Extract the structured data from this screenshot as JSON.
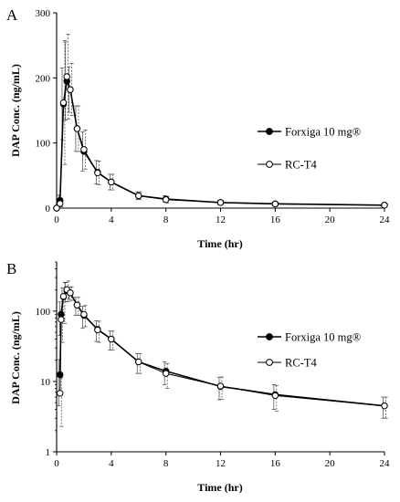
{
  "chart_data": [
    {
      "type": "line",
      "panel": "A",
      "scale": "linear",
      "xlabel": "Time (hr)",
      "ylabel": "DAP Conc. (ng/mL)",
      "xlim": [
        0,
        24
      ],
      "ylim": [
        0,
        300
      ],
      "xticks": [
        0,
        4,
        8,
        12,
        16,
        20,
        24
      ],
      "yticks": [
        0,
        100,
        200,
        300
      ],
      "x_tick_labels": [
        "0",
        "4",
        "8",
        "12",
        "16",
        "20",
        "24"
      ],
      "y_tick_labels": [
        "0",
        "100",
        "200",
        "300"
      ],
      "grid": false,
      "legend_position": "right",
      "series": [
        {
          "name": "Forxiga 10 mg®",
          "marker": "filled-circle",
          "color": "#000000",
          "x": [
            0,
            0.25,
            0.5,
            0.75,
            1,
            1.5,
            2,
            3,
            4,
            6,
            8,
            12,
            16,
            24
          ],
          "values": [
            0,
            12,
            160,
            195,
            182,
            122,
            87,
            55,
            40,
            19,
            14,
            8.5,
            6.5,
            4.5
          ],
          "error": [
            0,
            8,
            55,
            60,
            35,
            35,
            30,
            18,
            12,
            6,
            5,
            3,
            2.5,
            1.5
          ]
        },
        {
          "name": "RC-T4",
          "marker": "open-circle",
          "color": "#000000",
          "x": [
            0,
            0.25,
            0.5,
            0.75,
            1,
            1.5,
            2,
            3,
            4,
            6,
            8,
            12,
            16,
            24
          ],
          "values": [
            0,
            7,
            162,
            202,
            182,
            122,
            90,
            54,
            40,
            19,
            13,
            8.6,
            6.3,
            4.5
          ],
          "error": [
            0,
            5,
            95,
            65,
            40,
            35,
            30,
            18,
            12,
            6,
            5,
            3,
            2.5,
            1.5
          ]
        }
      ]
    },
    {
      "type": "line",
      "panel": "B",
      "scale": "log",
      "xlabel": "Time (hr)",
      "ylabel": "DAP Conc. (ng/mL)",
      "xlim": [
        0,
        24
      ],
      "ylim": [
        1,
        500
      ],
      "xticks": [
        0,
        4,
        8,
        12,
        16,
        20,
        24
      ],
      "yticks": [
        1,
        10,
        100
      ],
      "x_tick_labels": [
        "0",
        "4",
        "8",
        "12",
        "16",
        "20",
        "24"
      ],
      "y_tick_labels": [
        "1",
        "10",
        "100"
      ],
      "grid": false,
      "legend_position": "right",
      "series": [
        {
          "name": "Forxiga 10 mg®",
          "marker": "filled-circle",
          "color": "#000000",
          "x": [
            0.25,
            0.33,
            0.5,
            0.75,
            1,
            1.5,
            2,
            3,
            4,
            6,
            8,
            12,
            16,
            24
          ],
          "values": [
            12.5,
            90,
            160,
            195,
            182,
            122,
            87,
            55,
            40,
            19,
            14,
            8.5,
            6.5,
            4.5
          ],
          "error": [
            8,
            45,
            55,
            60,
            35,
            35,
            30,
            18,
            12,
            6,
            5,
            3,
            2.5,
            1.5
          ]
        },
        {
          "name": "RC-T4",
          "marker": "open-circle",
          "color": "#000000",
          "x": [
            0.25,
            0.33,
            0.5,
            0.75,
            1,
            1.5,
            2,
            3,
            4,
            6,
            8,
            12,
            16,
            24
          ],
          "values": [
            6.8,
            76,
            162,
            202,
            182,
            122,
            90,
            54,
            40,
            19,
            13,
            8.6,
            6.3,
            4.5
          ],
          "error": [
            4.5,
            40,
            95,
            65,
            40,
            35,
            30,
            18,
            12,
            6,
            5,
            3,
            2.5,
            1.5
          ]
        }
      ]
    }
  ]
}
